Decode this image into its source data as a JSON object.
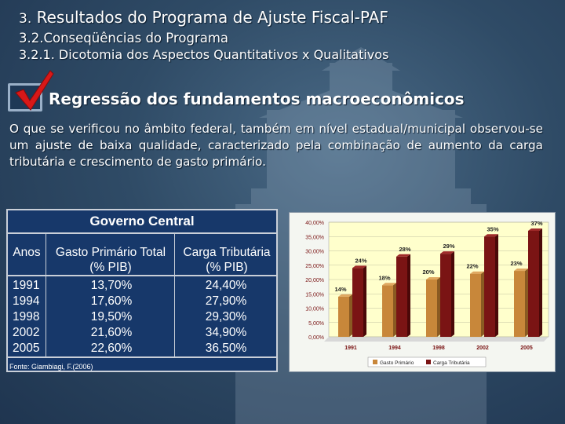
{
  "header": {
    "title_number": "3.",
    "title_text": "Resultados do Programa de Ajuste Fiscal-PAF",
    "line2": "3.2.Conseqüências do Programa",
    "line3": "3.2.1. Dicotomia dos Aspectos Quantitativos x Qualitativos"
  },
  "subtitle": "Regressão dos fundamentos macroeconômicos",
  "paragraph": "O que se verificou no âmbito federal, também em nível estadual/municipal observou-se um ajuste de baixa qualidade, caracterizado pela combinação de aumento da carga tributária e crescimento de gasto primário.",
  "table": {
    "title": "Governo Central",
    "col1": "Anos",
    "col2_line1": "Gasto Primário Total",
    "col2_line2": "(% PIB)",
    "col3_line1": "Carga Tributária",
    "col3_line2": "(% PIB)",
    "rows": [
      {
        "year": "1991",
        "gasto": "13,70%",
        "carga": "24,40%"
      },
      {
        "year": "1994",
        "gasto": "17,60%",
        "carga": "27,90%"
      },
      {
        "year": "1998",
        "gasto": "19,50%",
        "carga": "29,30%"
      },
      {
        "year": "2002",
        "gasto": "21,60%",
        "carga": "34,90%"
      },
      {
        "year": "2005",
        "gasto": "22,60%",
        "carga": "36,50%"
      }
    ],
    "source": "Fonte: Giambiagi, F.(2006)"
  },
  "chart_data": {
    "type": "bar",
    "categories": [
      "1991",
      "1994",
      "1998",
      "2002",
      "2005"
    ],
    "series": [
      {
        "name": "Gasto Primário",
        "values": [
          14,
          18,
          20,
          22,
          23
        ],
        "labels": [
          "14%",
          "18%",
          "20%",
          "22%",
          "23%"
        ],
        "color": "#c8873a"
      },
      {
        "name": "Carga Tributária",
        "values": [
          24,
          28,
          29,
          35,
          37
        ],
        "labels": [
          "24%",
          "28%",
          "29%",
          "35%",
          "37%"
        ],
        "color": "#7a1414"
      }
    ],
    "ylim": [
      0,
      40
    ],
    "yticks": [
      "0,00%",
      "5,00%",
      "10,00%",
      "15,00%",
      "20,00%",
      "25,00%",
      "30,00%",
      "35,00%",
      "40,00%"
    ],
    "legend_position": "bottom",
    "colors": {
      "plot_bg": "#ffffcc",
      "tick_text": "#7a1414"
    }
  }
}
